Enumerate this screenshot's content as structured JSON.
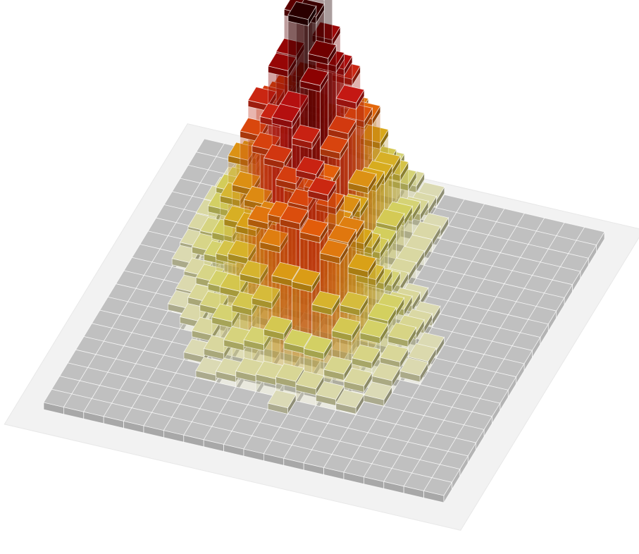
{
  "chart_data": {
    "type": "3d-bar-histogram",
    "grid": {
      "rows": 20,
      "cols": 20
    },
    "zlim": [
      0,
      2.05
    ],
    "show_base_grid": true,
    "colormap": [
      "#dddcc6",
      "#d3d060",
      "#d8a818",
      "#e4600a",
      "#c21414",
      "#860000",
      "#2a0000"
    ],
    "base_color": "#c0c0c0",
    "floor_color": "#f2f2f2",
    "peaks": [
      {
        "row": 5.5,
        "col": 7.5,
        "height": 1.0,
        "sigma_row": 2.7,
        "sigma_col": 2.1
      },
      {
        "row": 11.5,
        "col": 10.0,
        "height": 0.55,
        "sigma_row": 2.0,
        "sigma_col": 2.4
      }
    ],
    "noise_amplitude": 0.14
  }
}
